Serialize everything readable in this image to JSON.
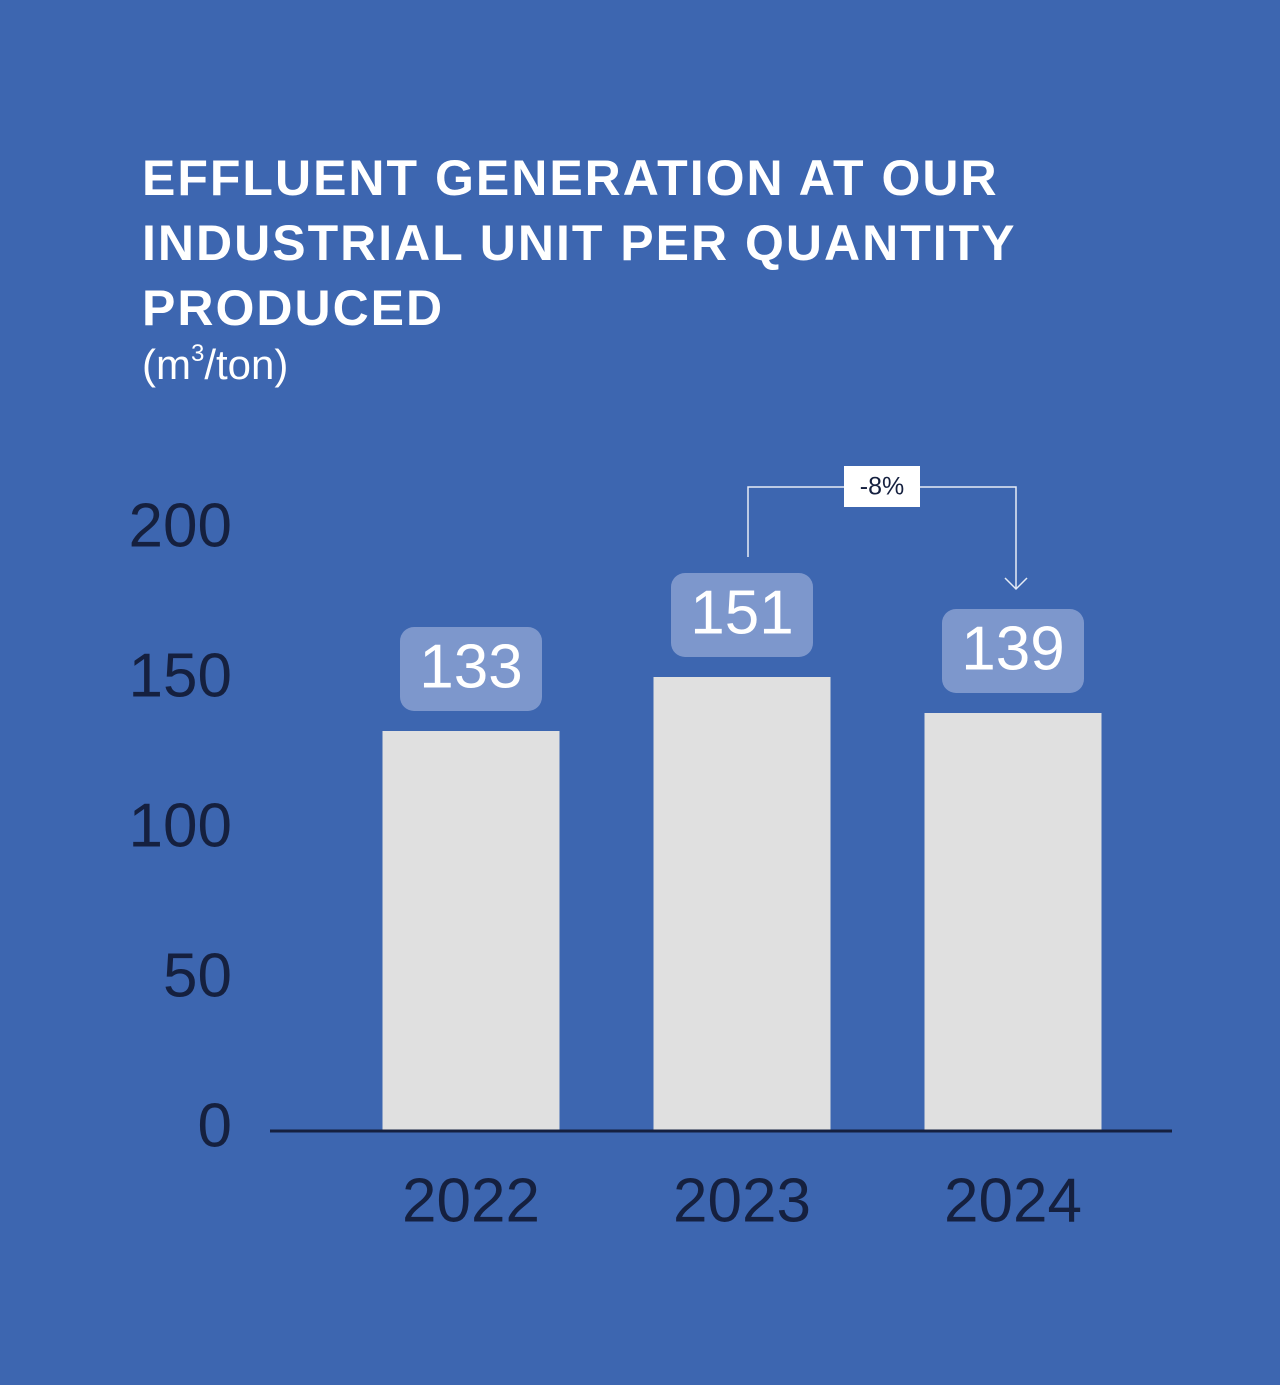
{
  "chart_data": {
    "type": "bar",
    "title_lines": [
      "EFFLUENT GENERATION AT OUR",
      "INDUSTRIAL UNIT PER QUANTITY",
      "PRODUCED"
    ],
    "unit": {
      "prefix": "(m",
      "superscript": "3",
      "suffix": "/ton)"
    },
    "categories": [
      "2022",
      "2023",
      "2024"
    ],
    "values": [
      133,
      151,
      139
    ],
    "value_labels": [
      "133",
      "151",
      "139"
    ],
    "yticks": [
      "0",
      "50",
      "100",
      "150",
      "200"
    ],
    "ylim": [
      0,
      200
    ],
    "annotation": {
      "label": "-8%",
      "from": "2023",
      "to": "2024"
    },
    "colors": {
      "background": "#3d66b0",
      "bar": "#e0e0e0",
      "label_box": "#7d97cc",
      "axis_text": "#15203f",
      "axis_line": "#15203f",
      "annotation_line": "#e6ecf6",
      "annotation_box": "#ffffff",
      "annotation_text": "#15203f"
    }
  }
}
